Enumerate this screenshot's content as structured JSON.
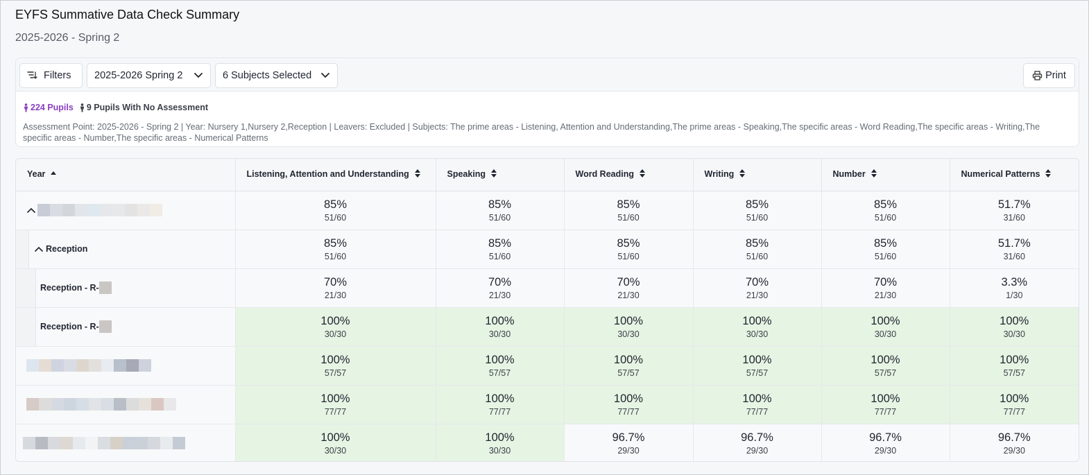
{
  "page": {
    "title": "EYFS Summative Data Check Summary",
    "subtitle": "2025-2026 - Spring 2"
  },
  "toolbar": {
    "filters_label": "Filters",
    "period_value": "2025-2026 Spring 2",
    "subjects_value": "6 Subjects Selected",
    "print_label": "Print"
  },
  "summary": {
    "pupils": "224 Pupils",
    "no_assessment": "9 Pupils With No Assessment",
    "assessment_info": "Assessment Point: 2025-2026 - Spring 2 | Year: Nursery 1,Nursery 2,Reception | Leavers: Excluded | Subjects: The prime areas - Listening, Attention and Understanding,The prime areas - Speaking,The specific areas - Word Reading,The specific areas - Writing,The specific areas - Number,The specific areas - Numerical Patterns"
  },
  "table": {
    "columns": [
      "Year",
      "Listening, Attention and Understanding",
      "Speaking",
      "Word Reading",
      "Writing",
      "Number",
      "Numerical Patterns"
    ],
    "rows": [
      {
        "label": "",
        "cells": [
          [
            "85%",
            "51/60"
          ],
          [
            "85%",
            "51/60"
          ],
          [
            "85%",
            "51/60"
          ],
          [
            "85%",
            "51/60"
          ],
          [
            "85%",
            "51/60"
          ],
          [
            "51.7%",
            "31/60"
          ]
        ]
      },
      {
        "label": "Reception",
        "cells": [
          [
            "85%",
            "51/60"
          ],
          [
            "85%",
            "51/60"
          ],
          [
            "85%",
            "51/60"
          ],
          [
            "85%",
            "51/60"
          ],
          [
            "85%",
            "51/60"
          ],
          [
            "51.7%",
            "31/60"
          ]
        ]
      },
      {
        "label": "Reception - R-",
        "cells": [
          [
            "70%",
            "21/30"
          ],
          [
            "70%",
            "21/30"
          ],
          [
            "70%",
            "21/30"
          ],
          [
            "70%",
            "21/30"
          ],
          [
            "70%",
            "21/30"
          ],
          [
            "3.3%",
            "1/30"
          ]
        ]
      },
      {
        "label": "Reception - R-",
        "cells": [
          [
            "100%",
            "30/30"
          ],
          [
            "100%",
            "30/30"
          ],
          [
            "100%",
            "30/30"
          ],
          [
            "100%",
            "30/30"
          ],
          [
            "100%",
            "30/30"
          ],
          [
            "100%",
            "30/30"
          ]
        ]
      },
      {
        "label": "",
        "cells": [
          [
            "100%",
            "57/57"
          ],
          [
            "100%",
            "57/57"
          ],
          [
            "100%",
            "57/57"
          ],
          [
            "100%",
            "57/57"
          ],
          [
            "100%",
            "57/57"
          ],
          [
            "100%",
            "57/57"
          ]
        ]
      },
      {
        "label": "",
        "cells": [
          [
            "100%",
            "77/77"
          ],
          [
            "100%",
            "77/77"
          ],
          [
            "100%",
            "77/77"
          ],
          [
            "100%",
            "77/77"
          ],
          [
            "100%",
            "77/77"
          ],
          [
            "100%",
            "77/77"
          ]
        ]
      },
      {
        "label": "",
        "cells": [
          [
            "100%",
            "30/30"
          ],
          [
            "100%",
            "30/30"
          ],
          [
            "96.7%",
            "29/30"
          ],
          [
            "96.7%",
            "29/30"
          ],
          [
            "96.7%",
            "29/30"
          ],
          [
            "96.7%",
            "29/30"
          ]
        ]
      }
    ]
  },
  "colors": {
    "accent_purple": "#8a3fc2",
    "complete_green": "#e6f4e3"
  }
}
